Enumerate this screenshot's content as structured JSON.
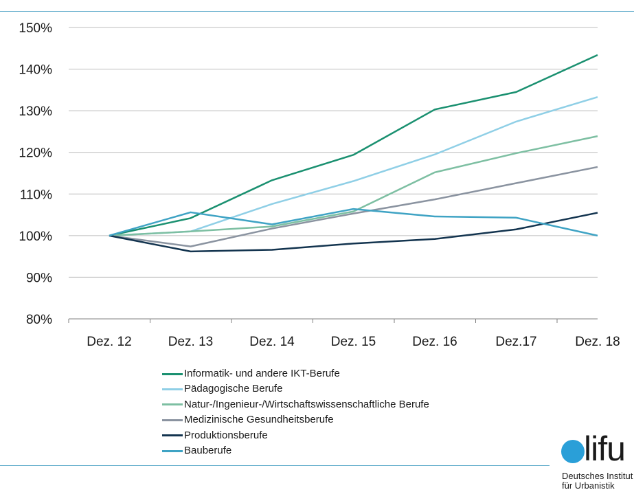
{
  "colors": {
    "rule": "#5aa9c9",
    "grid": "#bdbdbd",
    "axis": "#7f7f7f",
    "logo_dot": "#2a9fd8"
  },
  "chart_data": {
    "type": "line",
    "title": "",
    "xlabel": "",
    "ylabel": "",
    "categories": [
      "Dez. 12",
      "Dez. 13",
      "Dez. 14",
      "Dez. 15",
      "Dez. 16",
      "Dez.17",
      "Dez. 18"
    ],
    "y_ticks": [
      "80%",
      "90%",
      "100%",
      "110%",
      "120%",
      "130%",
      "140%",
      "150%"
    ],
    "ylim": [
      80,
      150
    ],
    "grid": true,
    "legend_position": "bottom-left",
    "series": [
      {
        "name": "Informatik- und andere IKT-Berufe",
        "color": "#1a9070",
        "values": [
          100,
          104.2,
          113.3,
          119.4,
          130.3,
          134.5,
          143.4
        ]
      },
      {
        "name": "Pädagogische Berufe",
        "color": "#8fcfe6",
        "values": [
          100,
          101.0,
          107.6,
          113.1,
          119.5,
          127.4,
          133.3
        ]
      },
      {
        "name": "Natur-/Ingenieur-/Wirtschaftswissenschaftliche Berufe",
        "color": "#7dbfa2",
        "values": [
          100,
          101.0,
          102.2,
          105.8,
          115.2,
          119.8,
          123.9
        ]
      },
      {
        "name": "Medizinische Gesundheitsberufe",
        "color": "#8a93a0",
        "values": [
          100,
          97.4,
          101.7,
          105.3,
          108.7,
          112.6,
          116.5
        ]
      },
      {
        "name": "Produktionsberufe",
        "color": "#13344f",
        "values": [
          100,
          96.2,
          96.6,
          98.1,
          99.2,
          101.5,
          105.5
        ]
      },
      {
        "name": "Bauberufe",
        "color": "#3fa3c4",
        "values": [
          100,
          105.6,
          102.7,
          106.4,
          104.6,
          104.3,
          100.0
        ]
      }
    ]
  },
  "logo": {
    "word": "lifu",
    "line1": "Deutsches Institut",
    "line2": "für Urbanistik"
  }
}
